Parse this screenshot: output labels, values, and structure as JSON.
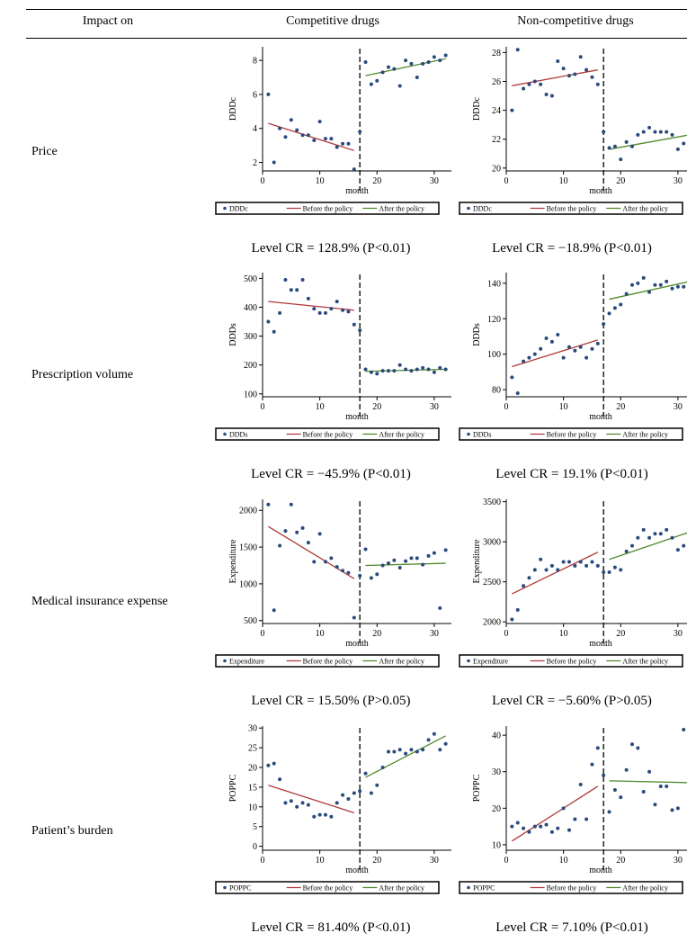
{
  "header": {
    "col0": "Impact on",
    "col1": "Competitive drugs",
    "col2": "Non-competitive drugs"
  },
  "rows": [
    {
      "label": "Price",
      "comp_level": "Level CR = 128.9% (P<0.01)",
      "noncomp_level": "Level CR = −18.9% (P<0.01)"
    },
    {
      "label": "Prescription volume",
      "comp_level": "Level CR = −45.9% (P<0.01)",
      "noncomp_level": "Level CR = 19.1% (P<0.01)"
    },
    {
      "label": "Medical insurance expense",
      "comp_level": "Level CR = 15.50% (P>0.05)",
      "noncomp_level": "Level CR = −5.60% (P>0.05)"
    },
    {
      "label": "Patient’s burden",
      "comp_level": "Level CR = 81.40% (P<0.01)",
      "noncomp_level": "Level CR = 7.10% (P<0.01)"
    }
  ],
  "colors": {
    "points": "#2b4a7c",
    "before_line": "#b03a3a",
    "after_line": "#4f8a2b"
  },
  "chart_data": [
    {
      "type": "scatter",
      "row": 0,
      "col": 0,
      "xlabel": "month",
      "ylabel": "DDDc",
      "xlim": [
        0,
        33
      ],
      "ylim": [
        1.5,
        8.8
      ],
      "xticks": [
        0,
        10,
        20,
        30
      ],
      "yticks": [
        2,
        4,
        6,
        8
      ],
      "intervention_x": 17,
      "legend": [
        "DDDc",
        "Before the policy",
        "After the policy"
      ],
      "series": [
        {
          "name": "DDDc",
          "x": [
            1,
            2,
            3,
            4,
            5,
            6,
            7,
            8,
            9,
            10,
            11,
            12,
            13,
            14,
            15,
            16,
            17,
            18,
            19,
            20,
            21,
            22,
            23,
            24,
            25,
            26,
            27,
            28,
            29,
            30,
            31,
            32
          ],
          "y": [
            6.0,
            2.0,
            4.0,
            3.5,
            4.5,
            3.9,
            3.6,
            3.6,
            3.3,
            4.4,
            3.4,
            3.4,
            2.9,
            3.1,
            3.1,
            1.6,
            3.8,
            7.9,
            6.6,
            6.8,
            7.3,
            7.6,
            7.5,
            6.5,
            8.0,
            7.8,
            7.0,
            7.8,
            7.9,
            8.2,
            8.0,
            8.3
          ]
        }
      ],
      "before_fit": [
        [
          1,
          4.3
        ],
        [
          16,
          2.7
        ]
      ],
      "after_fit": [
        [
          18,
          7.1
        ],
        [
          32,
          8.1
        ]
      ]
    },
    {
      "type": "scatter",
      "row": 0,
      "col": 1,
      "xlabel": "month",
      "ylabel": "DDDc",
      "xlim": [
        0,
        33
      ],
      "ylim": [
        19.8,
        28.4
      ],
      "xticks": [
        0,
        10,
        20,
        30
      ],
      "yticks": [
        20,
        22,
        24,
        26,
        28
      ],
      "intervention_x": 17,
      "legend": [
        "DDDc",
        "Before the policy",
        "After the policy"
      ],
      "series": [
        {
          "name": "DDDc",
          "x": [
            1,
            2,
            3,
            4,
            5,
            6,
            7,
            8,
            9,
            10,
            11,
            12,
            13,
            14,
            15,
            16,
            17,
            18,
            19,
            20,
            21,
            22,
            23,
            24,
            25,
            26,
            27,
            28,
            29,
            30,
            31,
            32
          ],
          "y": [
            24.0,
            28.2,
            25.5,
            25.8,
            26.0,
            25.8,
            25.1,
            25.0,
            27.4,
            26.9,
            26.4,
            26.5,
            27.7,
            26.8,
            26.3,
            25.8,
            22.5,
            21.4,
            21.5,
            20.6,
            21.8,
            21.5,
            22.3,
            22.5,
            22.8,
            22.5,
            22.5,
            22.5,
            22.3,
            21.3,
            21.7,
            21.9
          ]
        }
      ],
      "before_fit": [
        [
          1,
          25.7
        ],
        [
          16,
          26.8
        ]
      ],
      "after_fit": [
        [
          18,
          21.3
        ],
        [
          32,
          22.3
        ]
      ]
    },
    {
      "type": "scatter",
      "row": 1,
      "col": 0,
      "xlabel": "month",
      "ylabel": "DDDs",
      "xlim": [
        0,
        33
      ],
      "ylim": [
        90,
        520
      ],
      "xticks": [
        0,
        10,
        20,
        30
      ],
      "yticks": [
        100,
        200,
        300,
        400,
        500
      ],
      "intervention_x": 17,
      "legend": [
        "DDDs",
        "Before the policy",
        "After the policy"
      ],
      "series": [
        {
          "name": "DDDs",
          "x": [
            1,
            2,
            3,
            4,
            5,
            6,
            7,
            8,
            9,
            10,
            11,
            12,
            13,
            14,
            15,
            16,
            17,
            18,
            19,
            20,
            21,
            22,
            23,
            24,
            25,
            26,
            27,
            28,
            29,
            30,
            31,
            32
          ],
          "y": [
            350,
            315,
            380,
            495,
            460,
            460,
            495,
            430,
            395,
            380,
            380,
            395,
            420,
            390,
            385,
            340,
            320,
            185,
            175,
            170,
            180,
            180,
            180,
            200,
            185,
            180,
            185,
            190,
            185,
            175,
            190,
            185
          ]
        }
      ],
      "before_fit": [
        [
          1,
          420
        ],
        [
          16,
          390
        ]
      ],
      "after_fit": [
        [
          18,
          178
        ],
        [
          32,
          185
        ]
      ]
    },
    {
      "type": "scatter",
      "row": 1,
      "col": 1,
      "xlabel": "month",
      "ylabel": "DDDs",
      "xlim": [
        0,
        33
      ],
      "ylim": [
        76,
        146
      ],
      "xticks": [
        0,
        10,
        20,
        30
      ],
      "yticks": [
        80,
        100,
        120,
        140
      ],
      "intervention_x": 17,
      "legend": [
        "DDDs",
        "Before the policy",
        "After the policy"
      ],
      "series": [
        {
          "name": "DDDs",
          "x": [
            1,
            2,
            3,
            4,
            5,
            6,
            7,
            8,
            9,
            10,
            11,
            12,
            13,
            14,
            15,
            16,
            17,
            18,
            19,
            20,
            21,
            22,
            23,
            24,
            25,
            26,
            27,
            28,
            29,
            30,
            31,
            32
          ],
          "y": [
            87,
            78,
            96,
            98,
            100,
            103,
            109,
            107,
            111,
            98,
            104,
            102,
            104,
            98,
            103,
            106,
            117,
            123,
            126,
            128,
            134,
            139,
            140,
            143,
            135,
            139,
            139,
            141,
            137,
            138,
            138,
            137
          ]
        }
      ],
      "before_fit": [
        [
          1,
          93
        ],
        [
          16,
          108
        ]
      ],
      "after_fit": [
        [
          18,
          131
        ],
        [
          32,
          141
        ]
      ]
    },
    {
      "type": "scatter",
      "row": 2,
      "col": 0,
      "xlabel": "month",
      "ylabel": "Expenditure",
      "xlim": [
        0,
        33
      ],
      "ylim": [
        460,
        2150
      ],
      "xticks": [
        0,
        10,
        20,
        30
      ],
      "yticks": [
        500,
        1000,
        1500,
        2000
      ],
      "intervention_x": 17,
      "legend": [
        "Expenditure",
        "Before the policy",
        "After the policy"
      ],
      "series": [
        {
          "name": "Expenditure",
          "x": [
            1,
            2,
            3,
            4,
            5,
            6,
            7,
            8,
            9,
            10,
            11,
            12,
            13,
            14,
            15,
            16,
            17,
            18,
            19,
            20,
            21,
            22,
            23,
            24,
            25,
            26,
            27,
            28,
            29,
            30,
            31,
            32
          ],
          "y": [
            2080,
            640,
            1520,
            1720,
            2080,
            1700,
            1760,
            1560,
            1300,
            1680,
            1300,
            1350,
            1230,
            1180,
            1150,
            540,
            1110,
            1470,
            1080,
            1130,
            1250,
            1280,
            1320,
            1220,
            1310,
            1350,
            1350,
            1260,
            1380,
            1420,
            670,
            1460
          ]
        }
      ],
      "before_fit": [
        [
          1,
          1780
        ],
        [
          16,
          1070
        ]
      ],
      "after_fit": [
        [
          18,
          1250
        ],
        [
          32,
          1280
        ]
      ]
    },
    {
      "type": "scatter",
      "row": 2,
      "col": 1,
      "xlabel": "month",
      "ylabel": "Expenditure",
      "xlim": [
        0,
        33
      ],
      "ylim": [
        1980,
        3530
      ],
      "xticks": [
        0,
        10,
        20,
        30
      ],
      "yticks": [
        2000,
        2500,
        3000,
        3500
      ],
      "intervention_x": 17,
      "legend": [
        "Expenditure",
        "Before the policy",
        "After the policy"
      ],
      "series": [
        {
          "name": "Expenditure",
          "x": [
            1,
            2,
            3,
            4,
            5,
            6,
            7,
            8,
            9,
            10,
            11,
            12,
            13,
            14,
            15,
            16,
            17,
            18,
            19,
            20,
            21,
            22,
            23,
            24,
            25,
            26,
            27,
            28,
            29,
            30,
            31,
            32
          ],
          "y": [
            2030,
            2150,
            2450,
            2550,
            2650,
            2780,
            2650,
            2700,
            2650,
            2750,
            2750,
            2700,
            2750,
            2700,
            2750,
            2700,
            2620,
            2620,
            2680,
            2650,
            2880,
            2950,
            3050,
            3150,
            3050,
            3100,
            3100,
            3150,
            3050,
            2900,
            2950,
            3000
          ]
        }
      ],
      "before_fit": [
        [
          1,
          2350
        ],
        [
          16,
          2870
        ]
      ],
      "after_fit": [
        [
          18,
          2780
        ],
        [
          32,
          3120
        ]
      ]
    },
    {
      "type": "scatter",
      "row": 3,
      "col": 0,
      "xlabel": "month",
      "ylabel": "POPPC",
      "xlim": [
        0,
        33
      ],
      "ylim": [
        -1,
        30.5
      ],
      "xticks": [
        0,
        10,
        20,
        30
      ],
      "yticks": [
        0,
        5,
        10,
        15,
        20,
        25,
        30
      ],
      "intervention_x": 17,
      "legend": [
        "POPPC",
        "Before the policy",
        "After the policy"
      ],
      "series": [
        {
          "name": "POPPC",
          "x": [
            1,
            2,
            3,
            4,
            5,
            6,
            7,
            8,
            9,
            10,
            11,
            12,
            13,
            14,
            15,
            16,
            17,
            18,
            19,
            20,
            21,
            22,
            23,
            24,
            25,
            26,
            27,
            28,
            29,
            30,
            31,
            32
          ],
          "y": [
            20.5,
            21,
            17,
            11,
            11.5,
            10,
            11,
            10.5,
            7.5,
            8,
            8,
            7.5,
            11,
            13,
            12,
            13.5,
            14,
            18.5,
            13.5,
            15.5,
            20,
            24,
            24,
            24.5,
            23.5,
            24.5,
            24,
            24.5,
            27,
            28.5,
            24.5,
            26
          ]
        }
      ],
      "before_fit": [
        [
          1,
          15.5
        ],
        [
          16,
          8.5
        ]
      ],
      "after_fit": [
        [
          18,
          17.5
        ],
        [
          32,
          28
        ]
      ]
    },
    {
      "type": "scatter",
      "row": 3,
      "col": 1,
      "xlabel": "month",
      "ylabel": "POPPC",
      "xlim": [
        0,
        33
      ],
      "ylim": [
        8.5,
        42.5
      ],
      "xticks": [
        0,
        10,
        20,
        30
      ],
      "yticks": [
        10,
        20,
        30,
        40
      ],
      "intervention_x": 17,
      "legend": [
        "POPPC",
        "Before the policy",
        "After the policy"
      ],
      "series": [
        {
          "name": "POPPC",
          "x": [
            1,
            2,
            3,
            4,
            5,
            6,
            7,
            8,
            9,
            10,
            11,
            12,
            13,
            14,
            15,
            16,
            17,
            18,
            19,
            20,
            21,
            22,
            23,
            24,
            25,
            26,
            27,
            28,
            29,
            30,
            31,
            32
          ],
          "y": [
            15,
            16,
            14.5,
            13.5,
            15,
            15,
            15.5,
            13.5,
            14.5,
            20,
            14,
            17,
            26.5,
            17,
            32,
            36.5,
            29,
            19,
            25,
            23,
            30.5,
            37.5,
            36.5,
            24.5,
            30,
            21,
            26,
            26,
            19.5,
            20,
            41.5,
            22
          ]
        }
      ],
      "before_fit": [
        [
          1,
          11
        ],
        [
          16,
          26
        ]
      ],
      "after_fit": [
        [
          18,
          27.5
        ],
        [
          32,
          27
        ]
      ]
    }
  ]
}
